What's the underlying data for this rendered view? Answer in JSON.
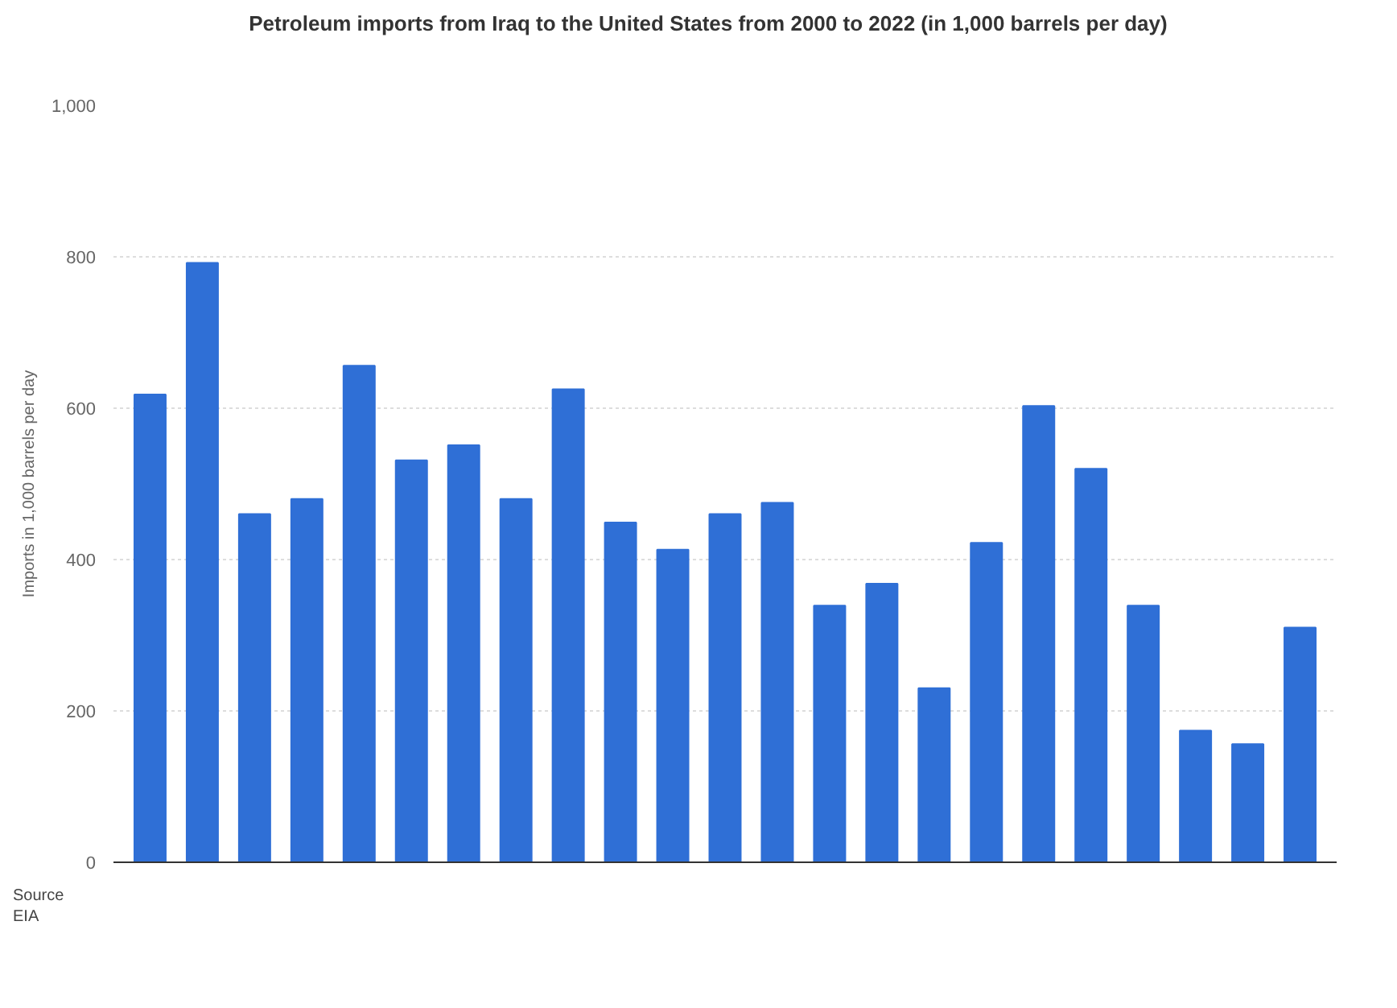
{
  "chart_data": {
    "type": "bar",
    "title": "Petroleum imports from Iraq to the United States from 2000 to 2022 (in 1,000 barrels per day)",
    "ylabel": "Imports in 1,000 barrels per day",
    "categories": [
      null,
      null,
      null,
      null,
      null,
      null,
      null,
      null,
      null,
      null,
      null,
      null,
      null,
      null,
      null,
      null,
      null,
      null,
      null,
      null,
      null,
      null,
      null
    ],
    "values": [
      618,
      792,
      460,
      480,
      656,
      531,
      551,
      480,
      625,
      449,
      413,
      460,
      475,
      339,
      368,
      230,
      422,
      603,
      520,
      339,
      174,
      156,
      310
    ],
    "color": "#2f6fd6",
    "ylim": [
      0,
      1000
    ],
    "yticks": [
      0,
      200,
      400,
      600,
      800,
      {
        "value": 1000,
        "label": "1,000"
      }
    ],
    "grid": "y",
    "annotations": [
      "Source",
      "EIA"
    ]
  }
}
